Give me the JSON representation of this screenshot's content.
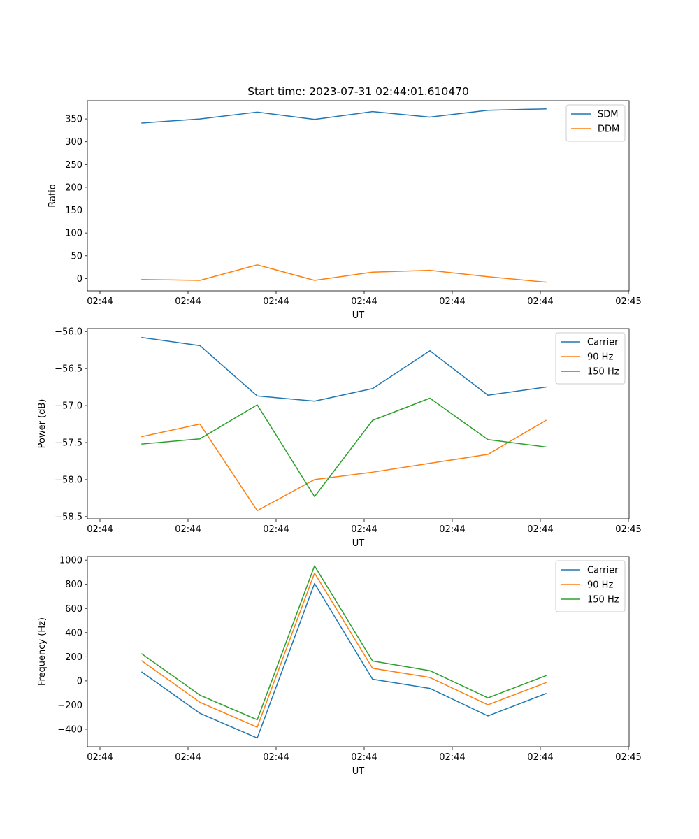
{
  "chart_data": [
    {
      "type": "line",
      "title": "Start time: 2023-07-31 02:44:01.610470",
      "xlabel": "UT",
      "ylabel": "Ratio",
      "legend_position": "top-right",
      "xtick_labels": [
        "02:44",
        "02:44",
        "02:44",
        "02:44",
        "02:44",
        "02:44",
        "02:45"
      ],
      "yticks": [
        0,
        50,
        100,
        150,
        200,
        250,
        300,
        350
      ],
      "ylim": [
        -27,
        390
      ],
      "series": [
        {
          "name": "SDM",
          "color": "#1f77b4",
          "values": [
            341,
            350,
            365,
            349,
            366,
            354,
            369,
            372
          ]
        },
        {
          "name": "DDM",
          "color": "#ff7f0e",
          "values": [
            -2,
            -4,
            30,
            -4,
            14,
            18,
            4,
            -8
          ]
        }
      ]
    },
    {
      "type": "line",
      "title": "",
      "xlabel": "UT",
      "ylabel": "Power (dB)",
      "legend_position": "top-right",
      "xtick_labels": [
        "02:44",
        "02:44",
        "02:44",
        "02:44",
        "02:44",
        "02:44",
        "02:45"
      ],
      "yticks": [
        -58.5,
        -58.0,
        -57.5,
        -57.0,
        -56.5,
        -56.0
      ],
      "ytick_labels": [
        "−58.5",
        "−58.0",
        "−57.5",
        "−57.0",
        "−56.5",
        "−56.0"
      ],
      "ylim": [
        -58.53,
        -55.96
      ],
      "series": [
        {
          "name": "Carrier",
          "color": "#1f77b4",
          "values": [
            -56.08,
            -56.19,
            -56.87,
            -56.94,
            -56.77,
            -56.26,
            -56.86,
            -56.75
          ]
        },
        {
          "name": "90 Hz",
          "color": "#ff7f0e",
          "values": [
            -57.42,
            -57.25,
            -58.42,
            -58.0,
            -57.9,
            -57.78,
            -57.66,
            -57.2
          ]
        },
        {
          "name": "150 Hz",
          "color": "#2ca02c",
          "values": [
            -57.52,
            -57.45,
            -56.99,
            -58.23,
            -57.2,
            -56.9,
            -57.46,
            -57.56
          ]
        }
      ]
    },
    {
      "type": "line",
      "title": "",
      "xlabel": "UT",
      "ylabel": "Frequency (Hz)",
      "legend_position": "top-right",
      "xtick_labels": [
        "02:44",
        "02:44",
        "02:44",
        "02:44",
        "02:44",
        "02:44",
        "02:45"
      ],
      "yticks": [
        -400,
        -200,
        0,
        200,
        400,
        600,
        800,
        1000
      ],
      "ytick_labels": [
        "−400",
        "−200",
        "0",
        "200",
        "400",
        "600",
        "800",
        "1000"
      ],
      "ylim": [
        -545,
        1030
      ],
      "series": [
        {
          "name": "Carrier",
          "color": "#1f77b4",
          "values": [
            73,
            -268,
            -473,
            807,
            14,
            -62,
            -290,
            -105
          ]
        },
        {
          "name": "90 Hz",
          "color": "#ff7f0e",
          "values": [
            166,
            -177,
            -383,
            893,
            105,
            28,
            -198,
            -15
          ]
        },
        {
          "name": "150 Hz",
          "color": "#2ca02c",
          "values": [
            224,
            -118,
            -322,
            953,
            165,
            85,
            -141,
            43
          ]
        }
      ]
    }
  ]
}
